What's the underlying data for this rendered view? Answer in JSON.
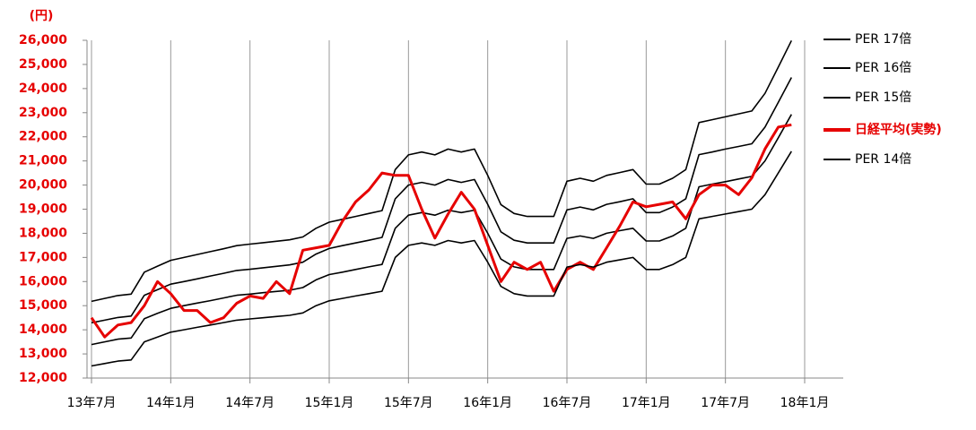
{
  "chart_data": {
    "type": "line",
    "y_unit_label": "(円)",
    "categories": [
      "13年7月",
      null,
      null,
      null,
      null,
      null,
      "14年1月",
      null,
      null,
      null,
      null,
      null,
      "14年7月",
      null,
      null,
      null,
      null,
      null,
      "15年1月",
      null,
      null,
      null,
      null,
      null,
      "15年7月",
      null,
      null,
      null,
      null,
      null,
      "16年1月",
      null,
      null,
      null,
      null,
      null,
      "16年7月",
      null,
      null,
      null,
      null,
      null,
      "17年1月",
      null,
      null,
      null,
      null,
      null,
      "17年7月",
      null,
      null,
      null,
      null,
      null,
      "18年1月"
    ],
    "ylim": [
      12000,
      26000
    ],
    "yticks": [
      {
        "value": 12000,
        "label": "12,000"
      },
      {
        "value": 13000,
        "label": "13,000"
      },
      {
        "value": 14000,
        "label": "14,000"
      },
      {
        "value": 15000,
        "label": "15,000"
      },
      {
        "value": 16000,
        "label": "16,000"
      },
      {
        "value": 17000,
        "label": "17,000"
      },
      {
        "value": 18000,
        "label": "18,000"
      },
      {
        "value": 19000,
        "label": "19,000"
      },
      {
        "value": 20000,
        "label": "20,000"
      },
      {
        "value": 21000,
        "label": "21,000"
      },
      {
        "value": 22000,
        "label": "22,000"
      },
      {
        "value": 23000,
        "label": "23,000"
      },
      {
        "value": 24000,
        "label": "24,000"
      },
      {
        "value": 25000,
        "label": "25,000"
      },
      {
        "value": 26000,
        "label": "26,000"
      }
    ],
    "grid": true,
    "series": [
      {
        "name": "PER 17倍",
        "color": "#000000",
        "values": [
          15180,
          15300,
          15420,
          15480,
          16390,
          16640,
          16880,
          17000,
          17120,
          17240,
          17360,
          17490,
          17550,
          17610,
          17670,
          17730,
          17850,
          18210,
          18460,
          18580,
          18700,
          18820,
          18940,
          20640,
          21250,
          21370,
          21250,
          21490,
          21370,
          21490,
          20400,
          19190,
          18820,
          18700,
          18700,
          18700,
          20160,
          20280,
          20160,
          20400,
          20520,
          20640,
          20040,
          20040,
          20280,
          20640,
          22590,
          22710,
          22830,
          22950,
          23070,
          23800,
          24890,
          25990,
          null
        ]
      },
      {
        "name": "PER 16倍",
        "color": "#000000",
        "values": [
          14290,
          14400,
          14510,
          14570,
          15430,
          15660,
          15890,
          16000,
          16110,
          16230,
          16340,
          16460,
          16510,
          16570,
          16630,
          16690,
          16800,
          17140,
          17370,
          17490,
          17600,
          17710,
          17830,
          19430,
          20000,
          20110,
          20000,
          20230,
          20110,
          20230,
          19200,
          18060,
          17710,
          17600,
          17600,
          17600,
          18970,
          19090,
          18970,
          19200,
          19310,
          19430,
          18860,
          18860,
          19090,
          19430,
          21260,
          21370,
          21490,
          21600,
          21710,
          22400,
          23430,
          24460,
          null
        ]
      },
      {
        "name": "PER 15倍",
        "color": "#000000",
        "values": [
          13390,
          13500,
          13610,
          13660,
          14460,
          14680,
          14890,
          15000,
          15110,
          15210,
          15320,
          15430,
          15480,
          15540,
          15590,
          15640,
          15750,
          16070,
          16290,
          16390,
          16500,
          16610,
          16710,
          18210,
          18750,
          18860,
          18750,
          18960,
          18860,
          18960,
          18000,
          16930,
          16610,
          16500,
          16500,
          16500,
          17790,
          17890,
          17790,
          18000,
          18110,
          18210,
          17680,
          17680,
          17890,
          18210,
          19930,
          20040,
          20140,
          20250,
          20360,
          21000,
          21960,
          22930,
          null
        ]
      },
      {
        "name": "日経平均(実勢)",
        "color": "#e60000",
        "values": [
          14500,
          13700,
          14200,
          14300,
          15000,
          16000,
          15500,
          14800,
          14800,
          14300,
          14500,
          15100,
          15400,
          15300,
          16000,
          15500,
          17300,
          17400,
          17500,
          18500,
          19300,
          19800,
          20500,
          20400,
          20400,
          19000,
          17800,
          18800,
          19700,
          19000,
          17500,
          16000,
          16800,
          16500,
          16800,
          15600,
          16500,
          16800,
          16500,
          17400,
          18300,
          19300,
          19100,
          19200,
          19300,
          18600,
          19600,
          20000,
          20000,
          19600,
          20300,
          21500,
          22400,
          22500,
          null
        ]
      },
      {
        "name": "PER 14倍",
        "color": "#000000",
        "values": [
          12500,
          12600,
          12700,
          12750,
          13500,
          13700,
          13900,
          14000,
          14100,
          14200,
          14300,
          14400,
          14450,
          14500,
          14550,
          14600,
          14700,
          15000,
          15200,
          15300,
          15400,
          15500,
          15600,
          17000,
          17500,
          17600,
          17500,
          17700,
          17600,
          17700,
          16800,
          15800,
          15500,
          15400,
          15400,
          15400,
          16600,
          16700,
          16600,
          16800,
          16900,
          17000,
          16500,
          16500,
          16700,
          17000,
          18600,
          18700,
          18800,
          18900,
          19000,
          19600,
          20500,
          21400,
          null
        ]
      }
    ]
  }
}
